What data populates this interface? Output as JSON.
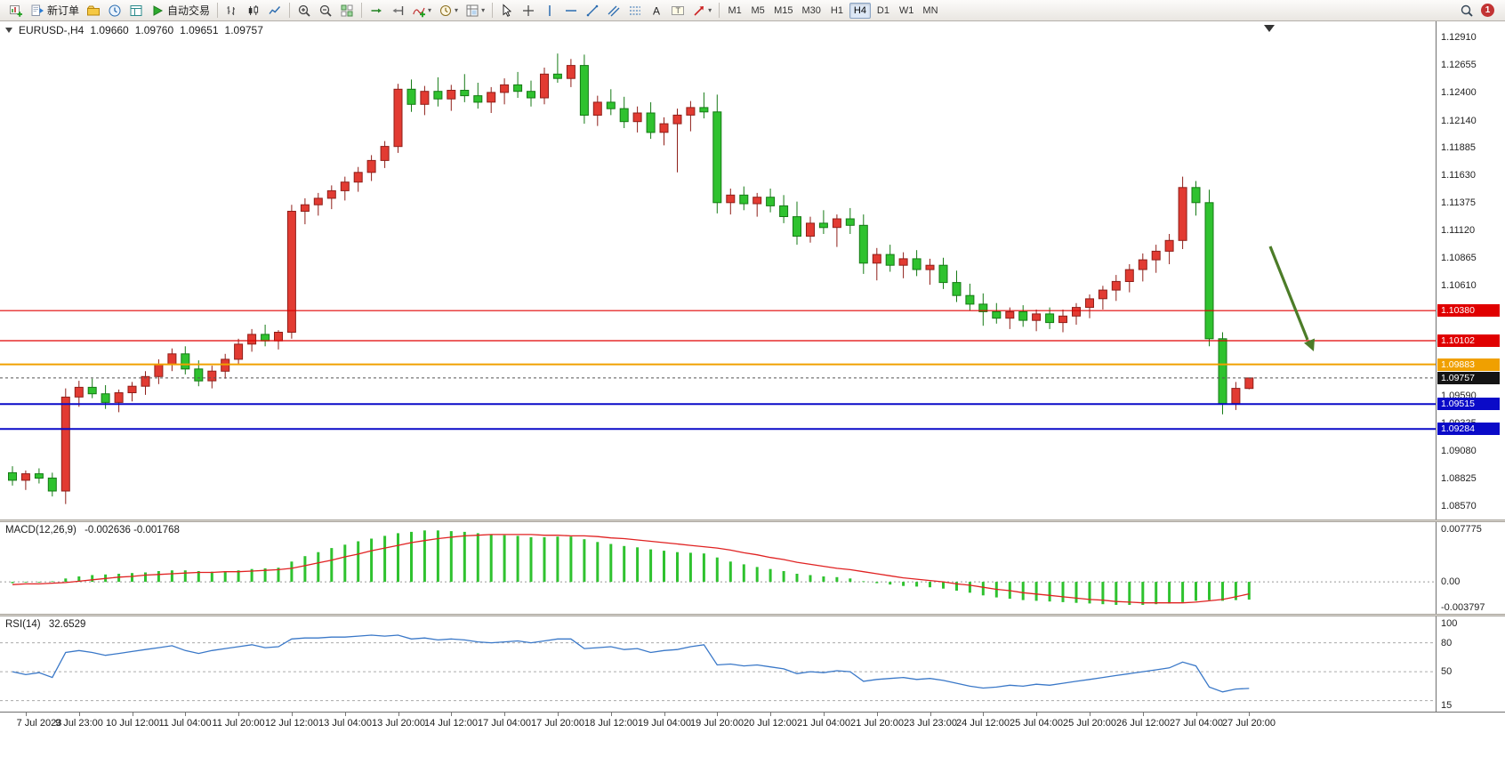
{
  "toolbar": {
    "groups": [
      {
        "name": "standard",
        "items": [
          {
            "name": "new-chart",
            "icon": "chart-plus"
          },
          {
            "name": "new-order",
            "icon": "order",
            "label": "新订单"
          },
          {
            "name": "profiles",
            "icon": "profiles"
          },
          {
            "name": "market-watch",
            "icon": "market-watch"
          },
          {
            "name": "data-window",
            "icon": "data-window"
          },
          {
            "name": "autotrading",
            "icon": "play",
            "label": "自动交易"
          }
        ]
      },
      {
        "name": "chart-types",
        "items": [
          {
            "name": "bar-chart",
            "icon": "bars"
          },
          {
            "name": "candlestick-chart",
            "icon": "candles"
          },
          {
            "name": "line-chart",
            "icon": "line"
          }
        ]
      },
      {
        "name": "zoom",
        "items": [
          {
            "name": "zoom-in",
            "icon": "zoom-in"
          },
          {
            "name": "zoom-out",
            "icon": "zoom-out"
          },
          {
            "name": "tile-windows",
            "icon": "tile"
          }
        ]
      },
      {
        "name": "chart-tools",
        "items": [
          {
            "name": "auto-scroll",
            "icon": "auto-scroll"
          },
          {
            "name": "chart-shift",
            "icon": "chart-shift"
          },
          {
            "name": "indicators",
            "icon": "indicator-plus",
            "caret": true
          },
          {
            "name": "periods",
            "icon": "clock",
            "caret": true
          },
          {
            "name": "templates",
            "icon": "template",
            "caret": true
          }
        ]
      },
      {
        "name": "drawing",
        "items": [
          {
            "name": "cursor",
            "icon": "cursor"
          },
          {
            "name": "crosshair",
            "icon": "crosshair"
          },
          {
            "name": "vertical-line",
            "icon": "vline"
          },
          {
            "name": "horizontal-line",
            "icon": "hline"
          },
          {
            "name": "trendline",
            "icon": "trendline"
          },
          {
            "name": "equidistant-channel",
            "icon": "channel"
          },
          {
            "name": "fibonacci-retracement",
            "icon": "fibo"
          },
          {
            "name": "text",
            "icon": "text"
          },
          {
            "name": "text-label",
            "icon": "label"
          },
          {
            "name": "arrows",
            "icon": "arrow-obj",
            "caret": true
          }
        ]
      }
    ],
    "timeframes": [
      "M1",
      "M5",
      "M15",
      "M30",
      "H1",
      "H4",
      "D1",
      "W1",
      "MN"
    ],
    "active_timeframe": "H4",
    "notification_count": "1"
  },
  "chart": {
    "header": {
      "symbol_period": "EURUSD-,H4",
      "open": "1.09660",
      "high": "1.09760",
      "low": "1.09651",
      "close": "1.09757"
    },
    "price_ticks": [
      "1.12910",
      "1.12655",
      "1.12400",
      "1.12140",
      "1.11885",
      "1.11630",
      "1.11375",
      "1.11120",
      "1.10865",
      "1.10610",
      "1.10355",
      "1.10100",
      "1.09845",
      "1.09590",
      "1.09335",
      "1.09080",
      "1.08825",
      "1.08570"
    ]
  },
  "macd": {
    "title": "MACD(12,26,9)",
    "values": "-0.002636 -0.001768"
  },
  "rsi": {
    "title": "RSI(14)",
    "value": "32.6529"
  },
  "style": {
    "bull_fill": "#e23b32",
    "bull_border": "#8f1f19",
    "bear_fill": "#2fc22f",
    "bear_border": "#157a15",
    "macd_histogram": "#2fc22f",
    "macd_signal": "#e02222",
    "rsi_line": "#3a78c8"
  },
  "chart_data": {
    "type": "candlestick",
    "symbol": "EURUSD-",
    "timeframe": "H4",
    "color_convention": "red = bullish, green = bearish",
    "ylim": [
      1.0857,
      1.1291
    ],
    "current_price": {
      "value": 1.09757,
      "label": "1.09757"
    },
    "annotation_arrow_color": "#4c7c28",
    "horizontal_lines": [
      {
        "price": 1.1038,
        "label": "1.10380",
        "color": "#e00000",
        "width": 1.2
      },
      {
        "price": 1.10102,
        "label": "1.10102",
        "color": "#e00000",
        "width": 1.2
      },
      {
        "price": 1.09883,
        "label": "1.09883",
        "color": "#f0a000",
        "width": 2
      },
      {
        "price": 1.09515,
        "label": "1.09515",
        "color": "#0a0ac8",
        "width": 2
      },
      {
        "price": 1.09284,
        "label": "1.09284",
        "color": "#0a0ac8",
        "width": 2
      }
    ],
    "x_label_first_index": 1,
    "x_label_step": 4,
    "x_labels": [
      "7 Jul 2023",
      "9 Jul 23:00",
      "10 Jul 12:00",
      "11 Jul 04:00",
      "11 Jul 20:00",
      "12 Jul 12:00",
      "13 Jul 04:00",
      "13 Jul 20:00",
      "14 Jul 12:00",
      "17 Jul 04:00",
      "17 Jul 20:00",
      "18 Jul 12:00",
      "19 Jul 04:00",
      "19 Jul 20:00",
      "20 Jul 12:00",
      "21 Jul 04:00",
      "21 Jul 20:00",
      "23 Jul 23:00",
      "24 Jul 12:00",
      "25 Jul 04:00",
      "25 Jul 20:00",
      "26 Jul 12:00",
      "27 Jul 04:00",
      "27 Jul 20:00"
    ],
    "candles_ohlc": [
      [
        1.0888,
        1.0894,
        1.0876,
        1.0881
      ],
      [
        1.0881,
        1.089,
        1.0872,
        1.0887
      ],
      [
        1.0887,
        1.0892,
        1.0878,
        1.0883
      ],
      [
        1.0883,
        1.0888,
        1.0866,
        1.0871
      ],
      [
        1.0871,
        1.0966,
        1.0859,
        1.0958
      ],
      [
        1.0958,
        1.0973,
        1.0949,
        1.0967
      ],
      [
        1.0967,
        1.0975,
        1.0957,
        1.0961
      ],
      [
        1.0961,
        1.0969,
        1.0947,
        1.0953
      ],
      [
        1.0953,
        1.0965,
        1.0944,
        1.0962
      ],
      [
        1.0962,
        1.0972,
        1.0954,
        1.0968
      ],
      [
        1.0968,
        1.0982,
        1.096,
        1.0977
      ],
      [
        1.0977,
        1.0993,
        1.097,
        1.0988
      ],
      [
        1.0988,
        1.1003,
        1.0982,
        1.0998
      ],
      [
        1.0998,
        1.1005,
        1.0979,
        1.0984
      ],
      [
        1.0984,
        1.0992,
        1.0968,
        1.0973
      ],
      [
        1.0973,
        1.0987,
        1.0966,
        1.0982
      ],
      [
        1.0982,
        1.0998,
        1.0975,
        1.0993
      ],
      [
        1.0993,
        1.1012,
        1.0988,
        1.1007
      ],
      [
        1.1007,
        1.1021,
        1.1,
        1.1016
      ],
      [
        1.1016,
        1.1025,
        1.1005,
        1.101
      ],
      [
        1.101,
        1.102,
        1.1002,
        1.1018
      ],
      [
        1.1018,
        1.1136,
        1.1012,
        1.113
      ],
      [
        1.113,
        1.1142,
        1.1118,
        1.1136
      ],
      [
        1.1136,
        1.1147,
        1.1126,
        1.1142
      ],
      [
        1.1142,
        1.1154,
        1.1132,
        1.1149
      ],
      [
        1.1149,
        1.1162,
        1.114,
        1.1157
      ],
      [
        1.1157,
        1.1171,
        1.1148,
        1.1166
      ],
      [
        1.1166,
        1.1182,
        1.1158,
        1.1177
      ],
      [
        1.1177,
        1.1195,
        1.117,
        1.119
      ],
      [
        1.119,
        1.1248,
        1.1184,
        1.1243
      ],
      [
        1.1243,
        1.1252,
        1.1222,
        1.1229
      ],
      [
        1.1229,
        1.1246,
        1.1219,
        1.1241
      ],
      [
        1.1241,
        1.1254,
        1.1227,
        1.1234
      ],
      [
        1.1234,
        1.1247,
        1.1223,
        1.1242
      ],
      [
        1.1242,
        1.1257,
        1.1231,
        1.1237
      ],
      [
        1.1237,
        1.1249,
        1.1225,
        1.1231
      ],
      [
        1.1231,
        1.1245,
        1.1221,
        1.124
      ],
      [
        1.124,
        1.1253,
        1.1229,
        1.1247
      ],
      [
        1.1247,
        1.1259,
        1.1235,
        1.1241
      ],
      [
        1.1241,
        1.1251,
        1.1227,
        1.1235
      ],
      [
        1.1235,
        1.1263,
        1.1229,
        1.1257
      ],
      [
        1.1257,
        1.1276,
        1.1249,
        1.1253
      ],
      [
        1.1253,
        1.1271,
        1.1245,
        1.1265
      ],
      [
        1.1265,
        1.1275,
        1.1211,
        1.1219
      ],
      [
        1.1219,
        1.1237,
        1.1209,
        1.1231
      ],
      [
        1.1231,
        1.1243,
        1.1219,
        1.1225
      ],
      [
        1.1225,
        1.1236,
        1.1207,
        1.1213
      ],
      [
        1.1213,
        1.1227,
        1.1203,
        1.1221
      ],
      [
        1.1221,
        1.1231,
        1.1197,
        1.1203
      ],
      [
        1.1203,
        1.1217,
        1.1191,
        1.1211
      ],
      [
        1.1211,
        1.1225,
        1.1166,
        1.1219
      ],
      [
        1.1219,
        1.1232,
        1.1204,
        1.1226
      ],
      [
        1.1226,
        1.124,
        1.1216,
        1.1222
      ],
      [
        1.1222,
        1.1238,
        1.1128,
        1.1138
      ],
      [
        1.1138,
        1.1151,
        1.1127,
        1.1145
      ],
      [
        1.1145,
        1.1153,
        1.1131,
        1.1137
      ],
      [
        1.1137,
        1.1147,
        1.1125,
        1.1143
      ],
      [
        1.1143,
        1.1151,
        1.1129,
        1.1135
      ],
      [
        1.1135,
        1.1145,
        1.1119,
        1.1125
      ],
      [
        1.1125,
        1.1139,
        1.1099,
        1.1107
      ],
      [
        1.1107,
        1.1125,
        1.1101,
        1.1119
      ],
      [
        1.1119,
        1.1131,
        1.1109,
        1.1115
      ],
      [
        1.1115,
        1.1127,
        1.1097,
        1.1123
      ],
      [
        1.1123,
        1.1133,
        1.1109,
        1.1117
      ],
      [
        1.1117,
        1.1127,
        1.1072,
        1.1082
      ],
      [
        1.1082,
        1.1096,
        1.1066,
        1.109
      ],
      [
        1.109,
        1.1099,
        1.1074,
        1.108
      ],
      [
        1.108,
        1.1092,
        1.1068,
        1.1086
      ],
      [
        1.1086,
        1.1094,
        1.107,
        1.1076
      ],
      [
        1.1076,
        1.1086,
        1.1062,
        1.108
      ],
      [
        1.108,
        1.1087,
        1.1058,
        1.1064
      ],
      [
        1.1064,
        1.1075,
        1.1046,
        1.1052
      ],
      [
        1.1052,
        1.1063,
        1.1038,
        1.1044
      ],
      [
        1.1044,
        1.1054,
        1.1024,
        1.1037
      ],
      [
        1.1037,
        1.1045,
        1.1026,
        1.1031
      ],
      [
        1.1031,
        1.1041,
        1.1021,
        1.1037
      ],
      [
        1.1037,
        1.1043,
        1.1023,
        1.1029
      ],
      [
        1.1029,
        1.1039,
        1.1019,
        1.1035
      ],
      [
        1.1035,
        1.1041,
        1.1021,
        1.1027
      ],
      [
        1.1027,
        1.1039,
        1.1018,
        1.1033
      ],
      [
        1.1033,
        1.1045,
        1.1025,
        1.1041
      ],
      [
        1.1041,
        1.1053,
        1.1031,
        1.1049
      ],
      [
        1.1049,
        1.1061,
        1.1039,
        1.1057
      ],
      [
        1.1057,
        1.1071,
        1.1047,
        1.1065
      ],
      [
        1.1065,
        1.1081,
        1.1055,
        1.1076
      ],
      [
        1.1076,
        1.1091,
        1.1065,
        1.1085
      ],
      [
        1.1085,
        1.1099,
        1.1073,
        1.1093
      ],
      [
        1.1093,
        1.1109,
        1.1081,
        1.1103
      ],
      [
        1.1103,
        1.1162,
        1.1095,
        1.1152
      ],
      [
        1.1152,
        1.1158,
        1.1126,
        1.1138
      ],
      [
        1.1138,
        1.115,
        1.1005,
        1.1012
      ],
      [
        1.1012,
        1.1018,
        1.0942,
        1.0952
      ],
      [
        1.0952,
        1.0972,
        1.0946,
        1.0966
      ],
      [
        1.0966,
        1.0976,
        1.09651,
        1.09757
      ]
    ],
    "indicators": {
      "macd": {
        "params": [
          12,
          26,
          9
        ],
        "last_values": [
          -0.002636,
          -0.001768
        ],
        "axis": [
          {
            "label": "0.007775",
            "value": 0.007775
          },
          {
            "label": "0.00",
            "value": 0
          },
          {
            "label": "-0.003797",
            "value": -0.003797
          }
        ],
        "histogram": [
          -0.0002,
          -0.0001,
          0,
          0.0001,
          0.0005,
          0.0008,
          0.001,
          0.0011,
          0.0012,
          0.0013,
          0.0014,
          0.0016,
          0.0017,
          0.0017,
          0.0016,
          0.0015,
          0.0016,
          0.0017,
          0.0019,
          0.002,
          0.0021,
          0.003,
          0.0038,
          0.0044,
          0.005,
          0.0055,
          0.006,
          0.0064,
          0.0068,
          0.0072,
          0.0074,
          0.0076,
          0.0076,
          0.0075,
          0.0074,
          0.0072,
          0.007,
          0.0069,
          0.0068,
          0.0066,
          0.0066,
          0.0067,
          0.0067,
          0.0063,
          0.0059,
          0.0056,
          0.0053,
          0.0051,
          0.0048,
          0.0046,
          0.0044,
          0.0043,
          0.0042,
          0.0036,
          0.003,
          0.0026,
          0.0022,
          0.0019,
          0.0016,
          0.0012,
          0.001,
          0.0008,
          0.0007,
          0.0005,
          0.0001,
          -0.0002,
          -0.0004,
          -0.0006,
          -0.0007,
          -0.0008,
          -0.001,
          -0.0013,
          -0.0016,
          -0.002,
          -0.0023,
          -0.0025,
          -0.0027,
          -0.0028,
          -0.0029,
          -0.003,
          -0.0031,
          -0.0032,
          -0.0033,
          -0.0034,
          -0.0034,
          -0.0034,
          -0.0033,
          -0.0032,
          -0.003,
          -0.0028,
          -0.0027,
          -0.0028,
          -0.0027,
          -0.002636
        ],
        "signal": [
          -0.0004,
          -0.0003,
          -0.0003,
          -0.0002,
          -0.0001,
          0.0001,
          0.0003,
          0.0005,
          0.0007,
          0.0008,
          0.001,
          0.0011,
          0.0012,
          0.0013,
          0.0014,
          0.0014,
          0.0015,
          0.0015,
          0.0016,
          0.0017,
          0.0018,
          0.002,
          0.0024,
          0.0028,
          0.0032,
          0.0037,
          0.0041,
          0.0046,
          0.005,
          0.0054,
          0.0058,
          0.0061,
          0.0064,
          0.0066,
          0.0068,
          0.0069,
          0.007,
          0.007,
          0.007,
          0.007,
          0.0069,
          0.0069,
          0.0068,
          0.0068,
          0.0067,
          0.0065,
          0.0064,
          0.0062,
          0.006,
          0.0058,
          0.0056,
          0.0054,
          0.0052,
          0.005,
          0.0047,
          0.0043,
          0.004,
          0.0036,
          0.0033,
          0.0029,
          0.0026,
          0.0023,
          0.002,
          0.0018,
          0.0015,
          0.0012,
          0.0009,
          0.0006,
          0.0004,
          0.0002,
          0,
          -0.0003,
          -0.0005,
          -0.0008,
          -0.0011,
          -0.0013,
          -0.0016,
          -0.0018,
          -0.002,
          -0.0022,
          -0.0024,
          -0.0026,
          -0.0027,
          -0.0029,
          -0.003,
          -0.0031,
          -0.0031,
          -0.0031,
          -0.0031,
          -0.003,
          -0.0028,
          -0.0026,
          -0.0022,
          -0.001768
        ]
      },
      "rsi": {
        "period": 14,
        "last_value": 32.6529,
        "levels": [
          80,
          50,
          20
        ],
        "axis": [
          {
            "label": "100",
            "value": 100
          },
          {
            "label": "80",
            "value": 80
          },
          {
            "label": "50",
            "value": 50
          },
          {
            "label": "15",
            "value": 15
          }
        ],
        "values": [
          50,
          47,
          49,
          44,
          70,
          72,
          70,
          67,
          69,
          71,
          73,
          75,
          77,
          72,
          69,
          72,
          74,
          76,
          78,
          75,
          76,
          84,
          85,
          85,
          86,
          86,
          87,
          88,
          87,
          88,
          84,
          85,
          83,
          84,
          83,
          81,
          80,
          81,
          82,
          80,
          82,
          84,
          84,
          74,
          75,
          76,
          73,
          74,
          70,
          72,
          73,
          76,
          78,
          57,
          58,
          56,
          57,
          55,
          53,
          48,
          50,
          49,
          51,
          50,
          40,
          42,
          43,
          44,
          42,
          43,
          41,
          38,
          35,
          33,
          34,
          36,
          35,
          37,
          36,
          38,
          40,
          42,
          44,
          46,
          48,
          50,
          52,
          54,
          60,
          56,
          34,
          29,
          32,
          32.6529
        ]
      }
    }
  }
}
